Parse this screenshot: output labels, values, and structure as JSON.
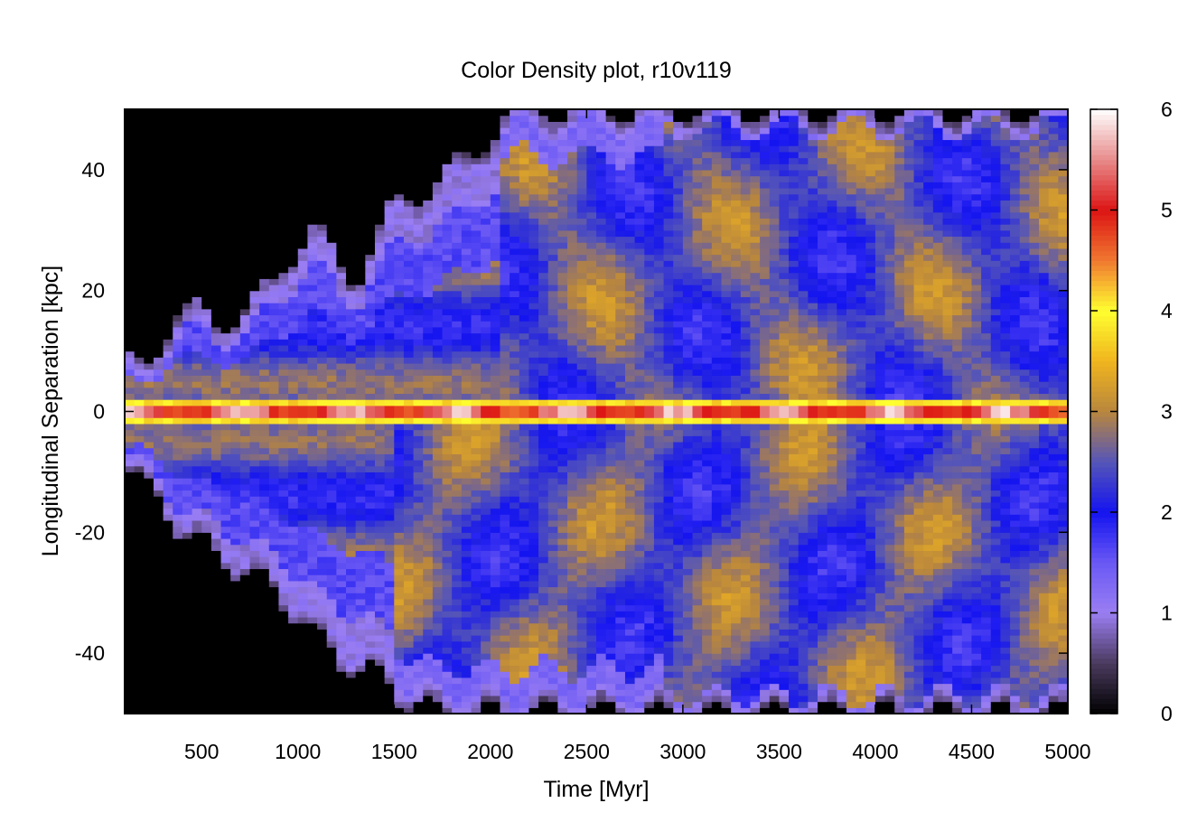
{
  "chart_data": {
    "type": "heatmap",
    "title": "Color Density plot, r10v119",
    "xlabel": "Time [Myr]",
    "ylabel": "Longitudinal Separation [kpc]",
    "xlim": [
      100,
      5000
    ],
    "ylim": [
      -50,
      50
    ],
    "xticks": [
      500,
      1000,
      1500,
      2000,
      2500,
      3000,
      3500,
      4000,
      4500,
      5000
    ],
    "yticks": [
      -40,
      -20,
      0,
      20,
      40
    ],
    "colorbar": {
      "range": [
        0,
        6
      ],
      "ticks": [
        0,
        1,
        2,
        3,
        4,
        5,
        6
      ],
      "stops": [
        {
          "value": 0,
          "color": "#000000"
        },
        {
          "value": 0.5,
          "color": "#4a3a5e"
        },
        {
          "value": 1,
          "color": "#9a7ef2"
        },
        {
          "value": 1.5,
          "color": "#6a58f4"
        },
        {
          "value": 2,
          "color": "#1414f0"
        },
        {
          "value": 2.5,
          "color": "#5555b8"
        },
        {
          "value": 3,
          "color": "#b8863e"
        },
        {
          "value": 3.5,
          "color": "#f0b41e"
        },
        {
          "value": 4,
          "color": "#ffff30"
        },
        {
          "value": 4.5,
          "color": "#f07830"
        },
        {
          "value": 5,
          "color": "#dc1414"
        },
        {
          "value": 5.5,
          "color": "#e88a8a"
        },
        {
          "value": 6,
          "color": "#ffffff"
        }
      ]
    },
    "columns": {
      "x_step": 50,
      "y_step": 1,
      "envelope_t": [
        100,
        300,
        500,
        700,
        900,
        1100,
        1300,
        1500,
        1700,
        1900,
        2100,
        2300,
        2500,
        2700,
        2900,
        5000
      ],
      "envelope_top": [
        8,
        12,
        18,
        14,
        24,
        30,
        22,
        34,
        38,
        42,
        50,
        50,
        50,
        50,
        50,
        50
      ],
      "envelope_bottom": [
        -8,
        -16,
        -22,
        -26,
        -30,
        -38,
        -42,
        -46,
        -50,
        -50,
        -50,
        -50,
        -50,
        -50,
        -50,
        -50
      ]
    }
  }
}
